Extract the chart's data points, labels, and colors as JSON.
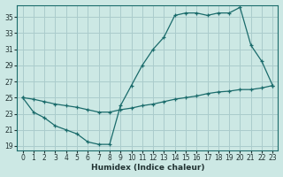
{
  "xlabel": "Humidex (Indice chaleur)",
  "ylabel": "",
  "background_color": "#cce8e4",
  "grid_color": "#aacccc",
  "line_color": "#1a6b6b",
  "xlim": [
    -0.5,
    23.5
  ],
  "ylim": [
    18.5,
    36.5
  ],
  "yticks": [
    19,
    21,
    23,
    25,
    27,
    29,
    31,
    33,
    35
  ],
  "xticks": [
    0,
    1,
    2,
    3,
    4,
    5,
    6,
    7,
    8,
    9,
    10,
    11,
    12,
    13,
    14,
    15,
    16,
    17,
    18,
    19,
    20,
    21,
    22,
    23
  ],
  "series1_x": [
    0,
    1,
    2,
    3,
    4,
    5,
    6,
    7,
    8,
    9,
    10,
    11,
    12,
    13,
    14,
    15,
    16,
    17,
    18,
    19,
    20,
    21,
    22,
    23
  ],
  "series1_y": [
    25.0,
    24.8,
    24.5,
    24.2,
    24.0,
    23.8,
    23.5,
    23.2,
    23.2,
    23.5,
    23.7,
    24.0,
    24.2,
    24.5,
    24.8,
    25.0,
    25.2,
    25.5,
    25.7,
    25.8,
    26.0,
    26.0,
    26.2,
    26.5
  ],
  "series2_x": [
    0,
    1,
    2,
    3,
    4,
    5,
    6,
    7,
    8,
    9,
    10,
    11,
    12,
    13,
    14,
    15,
    16,
    17,
    18,
    19,
    20,
    21,
    22,
    23
  ],
  "series2_y": [
    25.0,
    23.2,
    22.5,
    21.5,
    21.0,
    20.5,
    19.5,
    19.2,
    19.2,
    24.0,
    26.5,
    29.0,
    31.0,
    32.5,
    35.2,
    35.5,
    35.5,
    35.2,
    35.5,
    35.5,
    36.2,
    31.5,
    29.5,
    26.5
  ]
}
